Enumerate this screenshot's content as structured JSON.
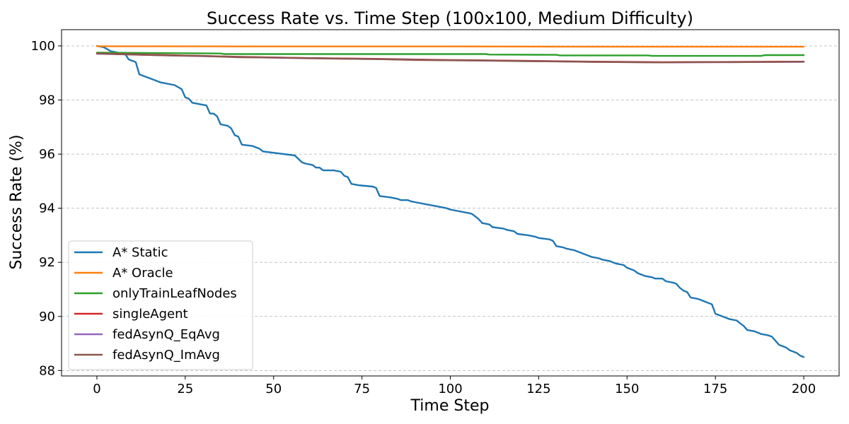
{
  "chart_data": {
    "type": "line",
    "title": "Success Rate vs. Time Step (100x100, Medium Difficulty)",
    "xlabel": "Time Step",
    "ylabel": "Success Rate (%)",
    "xlim": [
      -10,
      210
    ],
    "ylim": [
      87.8,
      100.6
    ],
    "xticks": [
      0,
      25,
      50,
      75,
      100,
      125,
      150,
      175,
      200
    ],
    "yticks": [
      88,
      90,
      92,
      94,
      96,
      98,
      100
    ],
    "grid": "horizontal-dashed",
    "legend_position": "lower-left",
    "series": [
      {
        "name": "A* Static",
        "color": "#1f77b4",
        "points": [
          [
            0,
            100.0
          ],
          [
            2,
            99.95
          ],
          [
            4,
            99.8
          ],
          [
            6,
            99.75
          ],
          [
            8,
            99.7
          ],
          [
            9,
            99.5
          ],
          [
            11,
            99.4
          ],
          [
            12,
            98.95
          ],
          [
            14,
            98.85
          ],
          [
            16,
            98.75
          ],
          [
            18,
            98.65
          ],
          [
            22,
            98.55
          ],
          [
            24,
            98.4
          ],
          [
            25,
            98.1
          ],
          [
            26,
            98.05
          ],
          [
            27,
            97.9
          ],
          [
            31,
            97.8
          ],
          [
            32,
            97.5
          ],
          [
            33,
            97.5
          ],
          [
            34,
            97.4
          ],
          [
            35,
            97.1
          ],
          [
            37,
            97.05
          ],
          [
            38,
            96.95
          ],
          [
            39,
            96.7
          ],
          [
            40,
            96.65
          ],
          [
            41,
            96.35
          ],
          [
            44,
            96.3
          ],
          [
            45,
            96.25
          ],
          [
            46,
            96.2
          ],
          [
            47,
            96.1
          ],
          [
            50,
            96.05
          ],
          [
            56,
            95.95
          ],
          [
            58,
            95.7
          ],
          [
            59,
            95.65
          ],
          [
            61,
            95.6
          ],
          [
            62,
            95.5
          ],
          [
            63,
            95.5
          ],
          [
            64,
            95.4
          ],
          [
            67,
            95.4
          ],
          [
            69,
            95.35
          ],
          [
            70,
            95.2
          ],
          [
            71,
            95.15
          ],
          [
            72,
            94.9
          ],
          [
            74,
            94.85
          ],
          [
            78,
            94.8
          ],
          [
            79,
            94.75
          ],
          [
            80,
            94.45
          ],
          [
            83,
            94.4
          ],
          [
            85,
            94.35
          ],
          [
            86,
            94.3
          ],
          [
            88,
            94.3
          ],
          [
            89,
            94.25
          ],
          [
            91,
            94.2
          ],
          [
            93,
            94.15
          ],
          [
            95,
            94.1
          ],
          [
            97,
            94.05
          ],
          [
            99,
            94.0
          ],
          [
            100,
            93.95
          ],
          [
            102,
            93.9
          ],
          [
            104,
            93.85
          ],
          [
            106,
            93.8
          ],
          [
            107,
            93.7
          ],
          [
            108,
            93.6
          ],
          [
            109,
            93.45
          ],
          [
            111,
            93.4
          ],
          [
            112,
            93.3
          ],
          [
            115,
            93.25
          ],
          [
            116,
            93.2
          ],
          [
            118,
            93.15
          ],
          [
            119,
            93.05
          ],
          [
            122,
            93.0
          ],
          [
            124,
            92.95
          ],
          [
            125,
            92.9
          ],
          [
            128,
            92.85
          ],
          [
            129,
            92.8
          ],
          [
            130,
            92.6
          ],
          [
            132,
            92.55
          ],
          [
            133,
            92.5
          ],
          [
            135,
            92.45
          ],
          [
            136,
            92.4
          ],
          [
            137,
            92.35
          ],
          [
            138,
            92.3
          ],
          [
            139,
            92.25
          ],
          [
            140,
            92.2
          ],
          [
            142,
            92.15
          ],
          [
            143,
            92.1
          ],
          [
            145,
            92.05
          ],
          [
            146,
            92.0
          ],
          [
            147,
            91.95
          ],
          [
            149,
            91.9
          ],
          [
            150,
            91.8
          ],
          [
            152,
            91.7
          ],
          [
            153,
            91.6
          ],
          [
            155,
            91.5
          ],
          [
            157,
            91.45
          ],
          [
            158,
            91.4
          ],
          [
            160,
            91.4
          ],
          [
            161,
            91.3
          ],
          [
            163,
            91.25
          ],
          [
            164,
            91.2
          ],
          [
            165,
            91.05
          ],
          [
            166,
            90.95
          ],
          [
            167,
            90.9
          ],
          [
            168,
            90.7
          ],
          [
            170,
            90.65
          ],
          [
            171,
            90.6
          ],
          [
            172,
            90.55
          ],
          [
            174,
            90.45
          ],
          [
            175,
            90.1
          ],
          [
            176,
            90.05
          ],
          [
            177,
            90.0
          ],
          [
            179,
            89.9
          ],
          [
            181,
            89.85
          ],
          [
            182,
            89.75
          ],
          [
            183,
            89.65
          ],
          [
            184,
            89.5
          ],
          [
            186,
            89.45
          ],
          [
            187,
            89.4
          ],
          [
            188,
            89.35
          ],
          [
            190,
            89.3
          ],
          [
            191,
            89.25
          ],
          [
            192,
            89.1
          ],
          [
            193,
            88.95
          ],
          [
            195,
            88.85
          ],
          [
            196,
            88.75
          ],
          [
            197,
            88.7
          ],
          [
            198,
            88.65
          ],
          [
            199,
            88.55
          ],
          [
            200,
            88.5
          ]
        ]
      },
      {
        "name": "A* Oracle",
        "color": "#ff7f0e",
        "points": [
          [
            0,
            99.99
          ],
          [
            50,
            99.98
          ],
          [
            100,
            99.98
          ],
          [
            150,
            99.97
          ],
          [
            200,
            99.97
          ]
        ]
      },
      {
        "name": "onlyTrainLeafNodes",
        "color": "#2ca02c",
        "points": [
          [
            0,
            99.75
          ],
          [
            35,
            99.72
          ],
          [
            36,
            99.7
          ],
          [
            110,
            99.7
          ],
          [
            111,
            99.68
          ],
          [
            130,
            99.67
          ],
          [
            131,
            99.65
          ],
          [
            156,
            99.65
          ],
          [
            157,
            99.63
          ],
          [
            188,
            99.63
          ],
          [
            189,
            99.66
          ],
          [
            200,
            99.66
          ]
        ]
      },
      {
        "name": "singleAgent",
        "color": "#d62728",
        "points": [
          [
            0,
            99.72
          ],
          [
            20,
            99.66
          ],
          [
            40,
            99.6
          ],
          [
            60,
            99.55
          ],
          [
            80,
            99.52
          ],
          [
            100,
            99.48
          ],
          [
            120,
            99.45
          ],
          [
            140,
            99.42
          ],
          [
            160,
            99.4
          ],
          [
            180,
            99.41
          ],
          [
            200,
            99.42
          ]
        ]
      },
      {
        "name": "fedAsynQ_EqAvg",
        "color": "#9467bd",
        "points": [
          [
            0,
            99.71
          ],
          [
            20,
            99.65
          ],
          [
            40,
            99.59
          ],
          [
            60,
            99.54
          ],
          [
            80,
            99.51
          ],
          [
            100,
            99.47
          ],
          [
            120,
            99.44
          ],
          [
            140,
            99.41
          ],
          [
            160,
            99.39
          ],
          [
            180,
            99.4
          ],
          [
            200,
            99.41
          ]
        ]
      },
      {
        "name": "fedAsynQ_ImAvg",
        "color": "#8c564b",
        "points": [
          [
            0,
            99.72
          ],
          [
            10,
            99.68
          ],
          [
            20,
            99.65
          ],
          [
            30,
            99.63
          ],
          [
            40,
            99.58
          ],
          [
            50,
            99.57
          ],
          [
            60,
            99.55
          ],
          [
            70,
            99.53
          ],
          [
            80,
            99.51
          ],
          [
            90,
            99.48
          ],
          [
            100,
            99.47
          ],
          [
            110,
            99.46
          ],
          [
            120,
            99.44
          ],
          [
            130,
            99.43
          ],
          [
            140,
            99.41
          ],
          [
            150,
            99.4
          ],
          [
            160,
            99.39
          ],
          [
            170,
            99.4
          ],
          [
            180,
            99.4
          ],
          [
            190,
            99.41
          ],
          [
            200,
            99.42
          ]
        ]
      }
    ]
  }
}
